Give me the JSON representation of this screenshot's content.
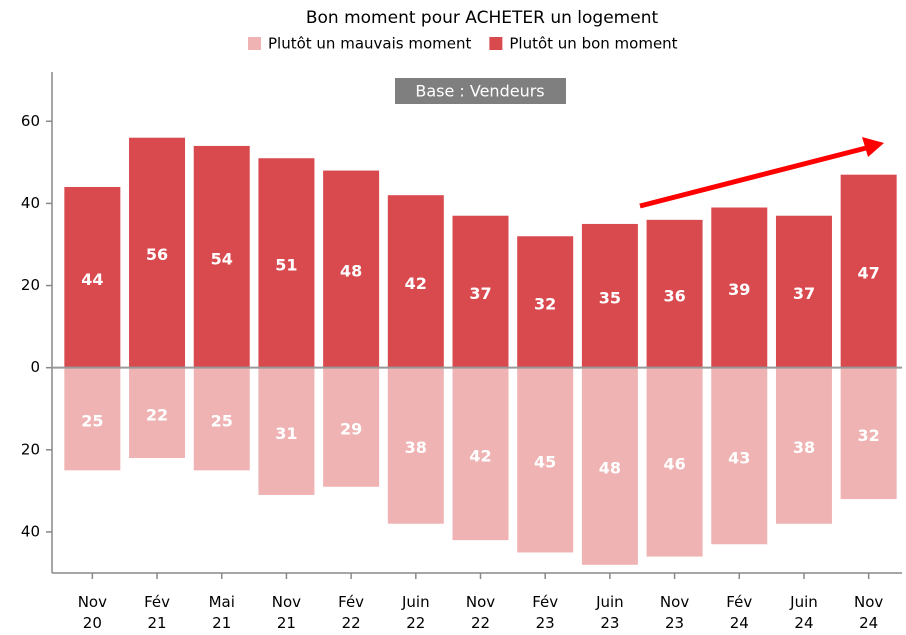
{
  "chart_data": {
    "type": "bar",
    "title": "Bon moment pour ACHETER un logement",
    "annotations": [
      "Base : Vendeurs"
    ],
    "categories": [
      "Nov 20",
      "Fév 21",
      "Mai 21",
      "Nov 21",
      "Fév 22",
      "Juin 22",
      "Nov 22",
      "Fév 23",
      "Juin 23",
      "Nov 23",
      "Fév 24",
      "Juin 24",
      "Nov 24"
    ],
    "series": [
      {
        "name": "Plutôt un mauvais moment",
        "color": "#f0b3b3",
        "values": [
          -25,
          -22,
          -25,
          -31,
          -29,
          -38,
          -42,
          -45,
          -48,
          -46,
          -43,
          -38,
          -32
        ],
        "value_labels": [
          "25",
          "22",
          "25",
          "31",
          "29",
          "38",
          "42",
          "45",
          "48",
          "46",
          "43",
          "38",
          "32"
        ]
      },
      {
        "name": "Plutôt un bon moment",
        "color": "#d94a4f",
        "values": [
          44,
          56,
          54,
          51,
          48,
          42,
          37,
          32,
          35,
          36,
          39,
          37,
          47
        ]
      }
    ],
    "ylim": [
      -50,
      72
    ],
    "yticks": [
      {
        "value": -40,
        "label": "40"
      },
      {
        "value": -20,
        "label": "20"
      },
      0,
      20,
      40,
      60
    ],
    "grid": false
  }
}
